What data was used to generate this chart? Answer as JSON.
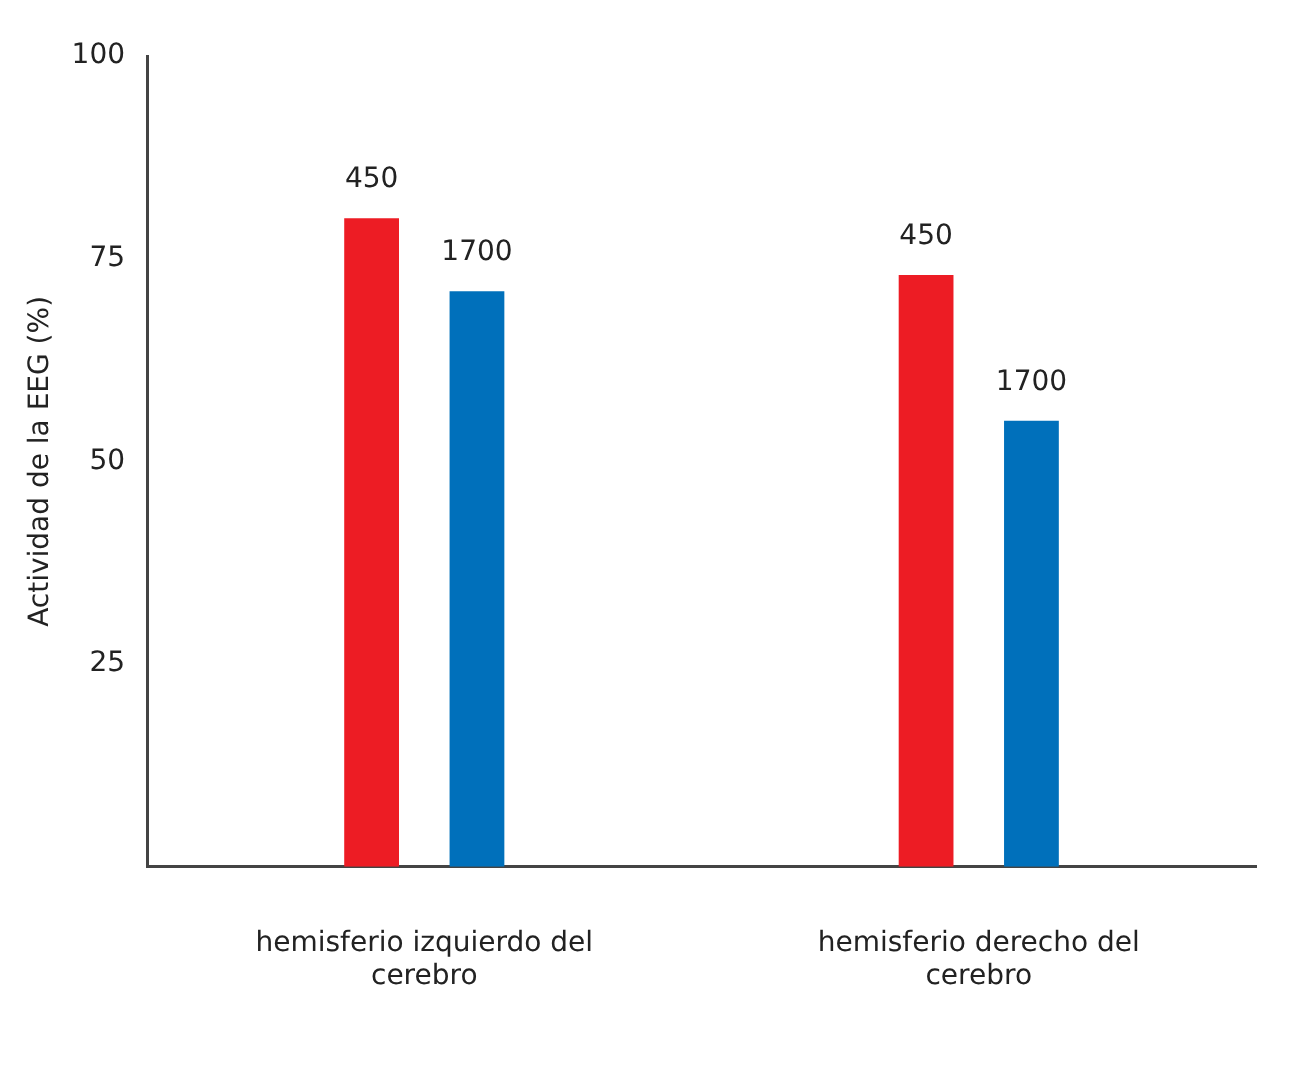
{
  "chart_data": {
    "type": "bar",
    "ylabel": "Actividad de la EEG (%)",
    "categories": [
      "hemisferio izquierdo del cerebro",
      "hemisferio derecho del cerebro"
    ],
    "series": [
      {
        "name": "450",
        "color": "#ed1c24",
        "values": [
          80,
          73
        ]
      },
      {
        "name": "1700",
        "color": "#0070bb",
        "values": [
          71,
          55
        ]
      }
    ],
    "ylim": [
      0,
      100
    ],
    "yticks": [
      {
        "value": 0,
        "label": null
      },
      25,
      50,
      75,
      100
    ],
    "grid": false,
    "legend": false
  }
}
